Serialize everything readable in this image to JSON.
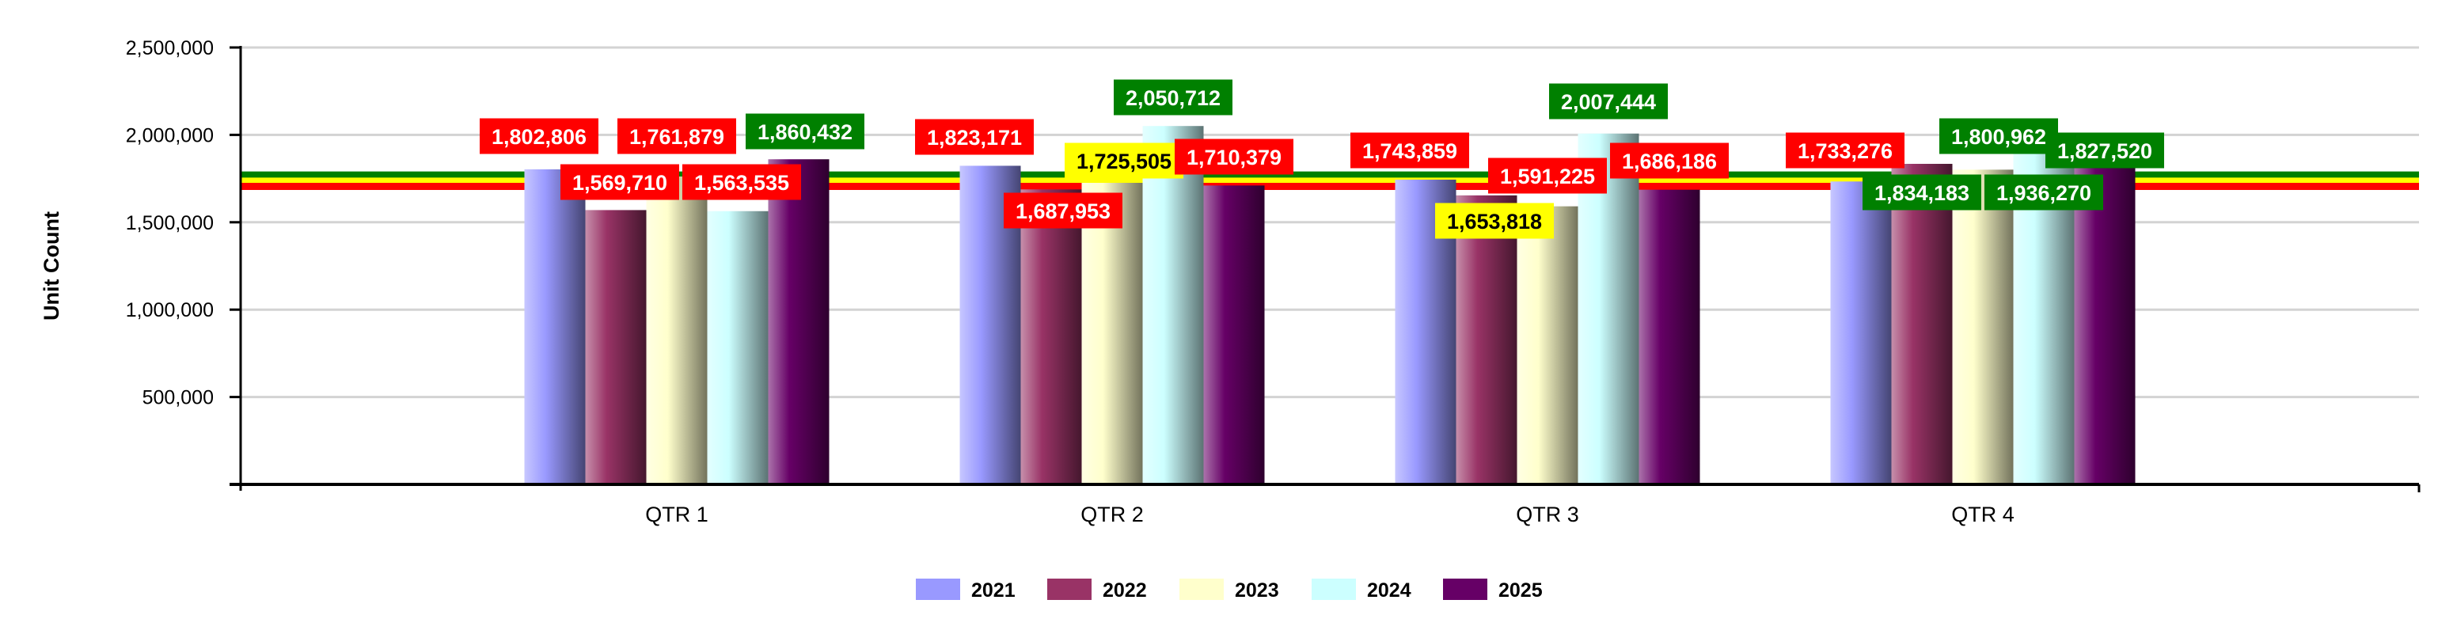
{
  "chart_data": {
    "type": "bar",
    "title": "",
    "xlabel": "",
    "ylabel": "Unit Count",
    "ylim": [
      0,
      2500000
    ],
    "yticks": [
      500000,
      1000000,
      1500000,
      2000000,
      2500000
    ],
    "ytick_labels": [
      "500,000",
      "1,000,000",
      "1,500,000",
      "2,000,000",
      "2,500,000"
    ],
    "grid": true,
    "legend_position": "bottom",
    "categories": [
      "QTR 1",
      "QTR 2",
      "QTR 3",
      "QTR 4"
    ],
    "series": [
      {
        "name": "2021",
        "color": "#9999ff",
        "values": [
          1802806,
          1823171,
          1743859,
          1733276
        ],
        "labels": [
          "1,802,806",
          "1,823,171",
          "1,743,859",
          "1,733,276"
        ],
        "label_status": [
          "red",
          "red",
          "red",
          "red"
        ]
      },
      {
        "name": "2022",
        "color": "#993366",
        "values": [
          1569710,
          1687953,
          1653818,
          1834183
        ],
        "labels": [
          "1,569,710",
          "1,687,953",
          "1,653,818",
          "1,834,183"
        ],
        "label_status": [
          "red",
          "red",
          "yellow",
          "green"
        ]
      },
      {
        "name": "2023",
        "color": "#ffffcc",
        "values": [
          1761879,
          1725505,
          1591225,
          1800962
        ],
        "labels": [
          "1,761,879",
          "1,725,505",
          "1,591,225",
          "1,800,962"
        ],
        "label_status": [
          "red",
          "yellow",
          "red",
          "green"
        ]
      },
      {
        "name": "2024",
        "color": "#ccffff",
        "values": [
          1563535,
          2050712,
          2007444,
          1936270
        ],
        "labels": [
          "1,563,535",
          "2,050,712",
          "2,007,444",
          "1,936,270"
        ],
        "label_status": [
          "red",
          "green",
          "green",
          "green"
        ]
      },
      {
        "name": "2025",
        "color": "#660066",
        "values": [
          1860432,
          1710379,
          1686186,
          1827520
        ],
        "labels": [
          "1,860,432",
          "1,710,379",
          "1,686,186",
          "1,827,520"
        ],
        "label_status": [
          "green",
          "red",
          "red",
          "green"
        ]
      }
    ],
    "reference_lines": [
      {
        "color": "#008000",
        "value": 1770000
      },
      {
        "color": "#ffff00",
        "value": 1735000
      },
      {
        "color": "#ff0000",
        "value": 1705000
      }
    ],
    "status_colors": {
      "red": {
        "fill": "#ff0000",
        "text": "#ffffff"
      },
      "green": {
        "fill": "#008000",
        "text": "#ffffff"
      },
      "yellow": {
        "fill": "#ffff00",
        "text": "#000000"
      }
    }
  }
}
